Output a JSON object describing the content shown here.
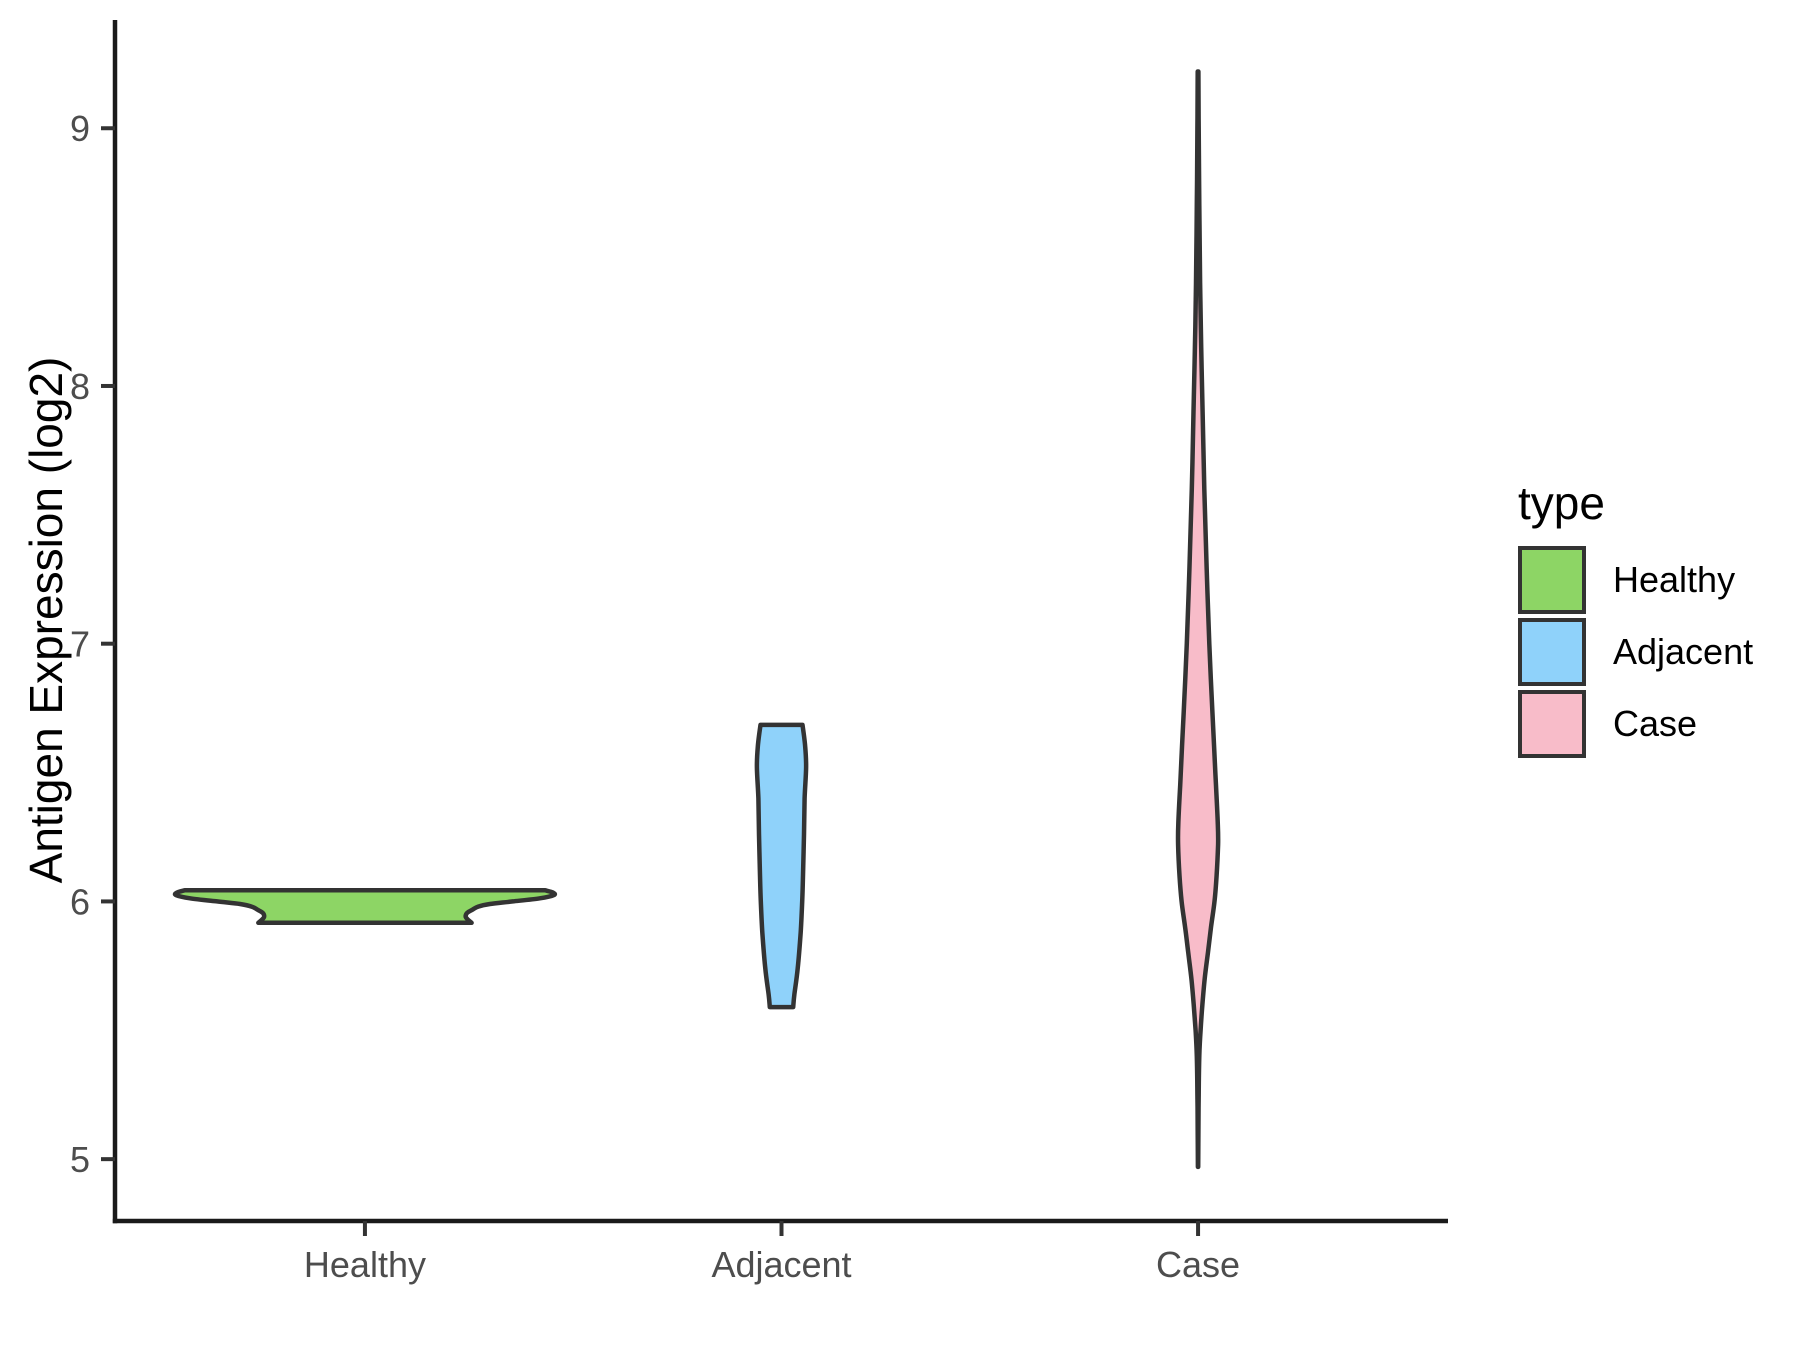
{
  "chart_data": {
    "type": "violin",
    "title": "",
    "xlabel": "",
    "ylabel": "Antigen Expression (log2)",
    "legend_title": "type",
    "legend_position": "right",
    "categories": [
      "Healthy",
      "Adjacent",
      "Case"
    ],
    "yticks": [
      5,
      6,
      7,
      8,
      9
    ],
    "ylim": [
      4.76,
      9.42
    ],
    "xlim": [
      0.4,
      3.6
    ],
    "grid": false,
    "style": {
      "outline_color": "#333333",
      "axis_color": "#1a1a1a",
      "tick_text_color": "#4d4d4d",
      "title_text_color": "#000000",
      "background": "#ffffff",
      "stroke_width": 4.5
    },
    "series": [
      {
        "name": "Healthy",
        "x": 1,
        "color": "#8DD565",
        "value_range": [
          5.92,
          6.04
        ],
        "profile": [
          [
            6.043,
            0.433
          ],
          [
            6.034,
            0.452
          ],
          [
            6.024,
            0.453
          ],
          [
            6.012,
            0.42
          ],
          [
            6.0,
            0.355
          ],
          [
            5.99,
            0.3
          ],
          [
            5.98,
            0.272
          ],
          [
            5.968,
            0.258
          ],
          [
            5.955,
            0.245
          ],
          [
            5.94,
            0.242
          ],
          [
            5.928,
            0.248
          ],
          [
            5.917,
            0.256
          ]
        ]
      },
      {
        "name": "Adjacent",
        "x": 2,
        "color": "#8FD2FA",
        "value_range": [
          5.59,
          6.69
        ],
        "profile": [
          [
            6.685,
            0.0505
          ],
          [
            6.6,
            0.057
          ],
          [
            6.52,
            0.059
          ],
          [
            6.4,
            0.0555
          ],
          [
            6.26,
            0.054
          ],
          [
            6.1,
            0.0515
          ],
          [
            6.0,
            0.0497
          ],
          [
            5.88,
            0.046
          ],
          [
            5.74,
            0.039
          ],
          [
            5.64,
            0.031
          ],
          [
            5.59,
            0.028
          ]
        ]
      },
      {
        "name": "Case",
        "x": 3,
        "color": "#F8BCC9",
        "value_range": [
          4.97,
          9.22
        ],
        "profile": [
          [
            9.22,
            0.0008
          ],
          [
            9.0,
            0.0015
          ],
          [
            8.7,
            0.003
          ],
          [
            8.4,
            0.005
          ],
          [
            8.15,
            0.0075
          ],
          [
            7.9,
            0.011
          ],
          [
            7.6,
            0.015
          ],
          [
            7.3,
            0.0205
          ],
          [
            7.0,
            0.027
          ],
          [
            6.8,
            0.0325
          ],
          [
            6.6,
            0.0385
          ],
          [
            6.45,
            0.043
          ],
          [
            6.3,
            0.0475
          ],
          [
            6.22,
            0.048
          ],
          [
            6.1,
            0.0445
          ],
          [
            6.0,
            0.0395
          ],
          [
            5.9,
            0.031
          ],
          [
            5.8,
            0.0235
          ],
          [
            5.7,
            0.016
          ],
          [
            5.6,
            0.0105
          ],
          [
            5.5,
            0.006
          ],
          [
            5.4,
            0.003
          ],
          [
            5.25,
            0.0015
          ],
          [
            5.1,
            0.0008
          ],
          [
            4.97,
            0.0004
          ]
        ]
      }
    ]
  }
}
